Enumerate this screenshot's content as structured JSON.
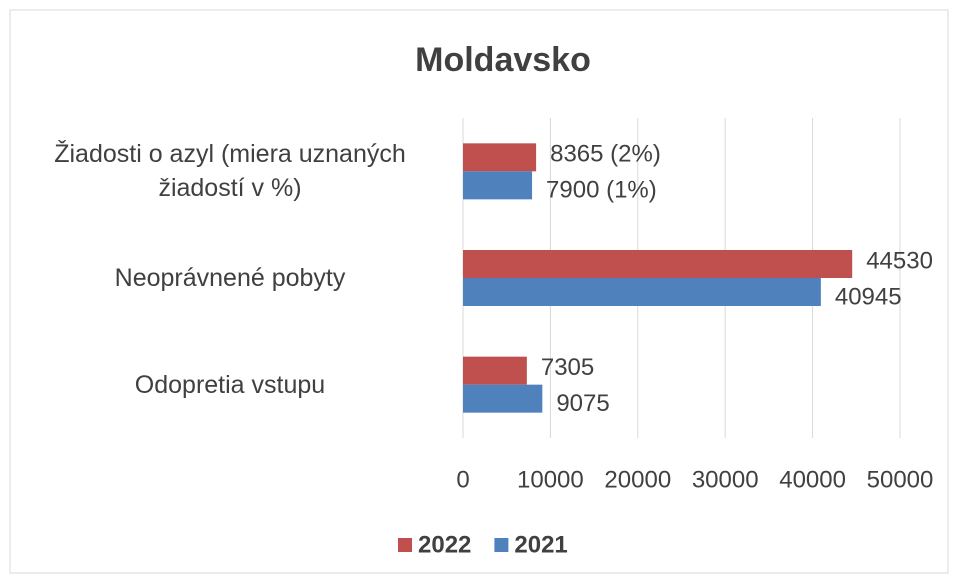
{
  "chart_data": {
    "type": "bar",
    "orientation": "horizontal",
    "title": "Moldavsko",
    "categories": [
      "Žiadosti o azyl (miera uznaných žiadostí v %)",
      "Neoprávnené pobyty",
      "Odopretia vstupu"
    ],
    "series": [
      {
        "name": "2022",
        "color": "#c0504d",
        "values": [
          8365,
          44530,
          7305
        ],
        "value_labels": [
          "8365 (2%)",
          "44530",
          "7305"
        ]
      },
      {
        "name": "2021",
        "color": "#4f81bd",
        "values": [
          7900,
          40945,
          9075
        ],
        "value_labels": [
          "7900 (1%)",
          "40945",
          "9075"
        ]
      }
    ],
    "xlim": [
      0,
      50000
    ],
    "xticks": [
      0,
      10000,
      20000,
      30000,
      40000,
      50000
    ],
    "grid": true,
    "legend": "bottom"
  }
}
